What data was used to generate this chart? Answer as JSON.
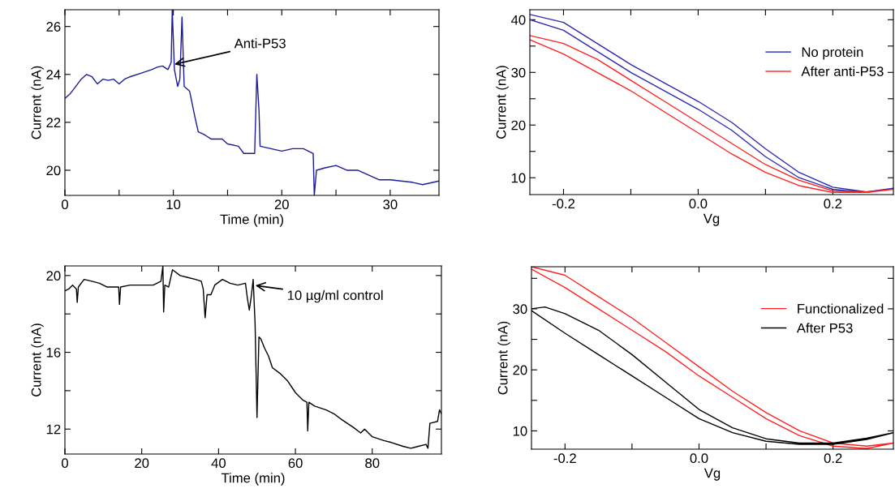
{
  "chart_data": [
    {
      "type": "line",
      "xlabel": "Time (min)",
      "ylabel": "Current (nA)",
      "xlim": [
        0,
        34.5
      ],
      "ylim": [
        18.95,
        26.7
      ],
      "xticks": [
        0,
        {
          "value": 5,
          "label": null
        },
        10,
        {
          "value": 15,
          "label": null
        },
        20,
        {
          "value": 25,
          "label": null
        },
        30
      ],
      "yticks": [
        20,
        22,
        24,
        26
      ],
      "legend": false,
      "grid": false,
      "series": [
        {
          "color": "#1a1a9c",
          "x": [
            0,
            0.5,
            1,
            1.5,
            2,
            2.5,
            3,
            3.5,
            4,
            4.5,
            5,
            5.5,
            6,
            7,
            8,
            8.5,
            9,
            9.5,
            9.8,
            9.9,
            10.1,
            10.4,
            10.6,
            10.8,
            11.0,
            11.5,
            12,
            12.3,
            12.8,
            13.5,
            14.5,
            15,
            16,
            16.5,
            17.5,
            17.7,
            17.9,
            18.0,
            19,
            20,
            21,
            22,
            22.9,
            23.0,
            23.2,
            24,
            25,
            26,
            27,
            28,
            29,
            30,
            31,
            32,
            33,
            34,
            34.5
          ],
          "values": [
            23.0,
            23.2,
            23.5,
            23.8,
            24.0,
            23.9,
            23.6,
            23.8,
            23.75,
            23.8,
            23.6,
            23.8,
            23.9,
            24.05,
            24.2,
            24.3,
            24.35,
            24.2,
            24.5,
            26.7,
            24.2,
            23.5,
            23.8,
            26.4,
            23.5,
            23.3,
            22.2,
            21.6,
            21.5,
            21.3,
            21.3,
            21.1,
            21.0,
            20.7,
            20.7,
            24.0,
            22.5,
            21.0,
            20.9,
            20.8,
            20.9,
            20.9,
            20.7,
            18.95,
            20.0,
            20.1,
            20.2,
            20.0,
            20.0,
            19.8,
            19.6,
            19.6,
            19.55,
            19.5,
            19.4,
            19.5,
            19.55
          ]
        }
      ],
      "annotations": [
        {
          "text": "Anti-P53",
          "x": 9.9,
          "y": 24.4
        }
      ]
    },
    {
      "type": "line",
      "xlabel": "Vg",
      "ylabel": "Current (nA)",
      "xlim": [
        -0.25,
        0.29
      ],
      "ylim": [
        6.8,
        41.9
      ],
      "xticks": [
        {
          "value": -0.2,
          "label": "-0.2"
        },
        {
          "value": -0.1,
          "label": null
        },
        {
          "value": 0,
          "label": "0.0"
        },
        {
          "value": 0.1,
          "label": null
        },
        {
          "value": 0.2,
          "label": "0.2"
        }
      ],
      "yticks": [
        10,
        {
          "value": 15,
          "label": null
        },
        20,
        {
          "value": 25,
          "label": null
        },
        30,
        {
          "value": 35,
          "label": null
        },
        40
      ],
      "legend": "top right",
      "grid": false,
      "series": [
        {
          "name": "No protein",
          "color": "#2a2ab0",
          "x": [
            -0.25,
            -0.2,
            -0.15,
            -0.1,
            -0.05,
            0,
            0.05,
            0.1,
            0.15,
            0.2,
            0.25,
            0.29,
            0.25,
            0.2,
            0.15,
            0.1,
            0.05,
            0,
            -0.05,
            -0.1,
            -0.15,
            -0.2,
            -0.25
          ],
          "values": [
            41,
            39.5,
            35.5,
            31.5,
            28,
            24.5,
            20.5,
            15.5,
            11,
            8.2,
            7.3,
            8.0,
            7.2,
            7.8,
            10,
            14,
            19,
            23,
            26.5,
            30,
            34,
            38,
            40
          ]
        },
        {
          "name": "After anti-P53",
          "color": "#ff2020",
          "x": [
            -0.25,
            -0.2,
            -0.15,
            -0.1,
            -0.05,
            0,
            0.05,
            0.1,
            0.15,
            0.2,
            0.25,
            0.29,
            0.25,
            0.2,
            0.15,
            0.1,
            0.05,
            0,
            -0.05,
            -0.1,
            -0.15,
            -0.2,
            -0.25
          ],
          "values": [
            37,
            35.5,
            32.5,
            28.5,
            24.5,
            20.5,
            16.5,
            12.5,
            9.5,
            7.5,
            7.3,
            7.8,
            7.2,
            7.2,
            8.5,
            11,
            14.5,
            18.5,
            22.5,
            26.5,
            30,
            33.5,
            36.2
          ]
        }
      ]
    },
    {
      "type": "line",
      "xlabel": "Time (min)",
      "ylabel": "Current (nA)",
      "xlim": [
        0,
        98
      ],
      "ylim": [
        10.7,
        20.5
      ],
      "xticks": [
        0,
        20,
        40,
        60,
        80
      ],
      "yticks": [
        12,
        {
          "value": 14,
          "label": null
        },
        16,
        {
          "value": 18,
          "label": null
        },
        20
      ],
      "legend": false,
      "grid": false,
      "series": [
        {
          "color": "#000000",
          "x": [
            0,
            1,
            2,
            3,
            3.2,
            3.5,
            5,
            7,
            9,
            11,
            13,
            14,
            14.2,
            14.5,
            17,
            20,
            23,
            25,
            25.5,
            25.7,
            26,
            27,
            28,
            30,
            32,
            34,
            35.5,
            36,
            36.5,
            37,
            38,
            39,
            41,
            43,
            45,
            47,
            47.5,
            48,
            48.5,
            49,
            49.5,
            50,
            50.5,
            51,
            52,
            53,
            54,
            56,
            58,
            60,
            62,
            63,
            63.2,
            63.5,
            65,
            68,
            70,
            72,
            75,
            77,
            78,
            80,
            83,
            85,
            88,
            90,
            92,
            94,
            94.5,
            95,
            97,
            97.5,
            98
          ],
          "values": [
            19.2,
            19.3,
            19.5,
            19.3,
            18.6,
            19.4,
            19.8,
            19.7,
            19.6,
            19.4,
            19.4,
            19.4,
            18.5,
            19.4,
            19.5,
            19.5,
            19.5,
            19.7,
            20.5,
            18.1,
            19.5,
            19.4,
            20.3,
            20.0,
            19.9,
            19.8,
            19.7,
            19.3,
            17.8,
            19.0,
            19.0,
            19.5,
            19.8,
            19.6,
            19.5,
            19.6,
            18.8,
            18.2,
            18.9,
            19.8,
            17.5,
            12.6,
            16.8,
            16.7,
            16.2,
            15.8,
            15.2,
            14.9,
            14.5,
            13.9,
            13.5,
            13.4,
            11.9,
            13.4,
            13.2,
            13.0,
            12.8,
            12.5,
            12.1,
            11.8,
            12.0,
            11.6,
            11.4,
            11.3,
            11.1,
            11.0,
            11.1,
            11.2,
            11.0,
            12.3,
            12.4,
            13.0,
            12.8
          ]
        }
      ],
      "annotations": [
        {
          "text": "10 µg/ml control",
          "x": 49,
          "y": 19.5
        }
      ]
    },
    {
      "type": "line",
      "xlabel": "Vg",
      "ylabel": "Current (nA)",
      "xlim": [
        -0.25,
        0.29
      ],
      "ylim": [
        7.0,
        36.9
      ],
      "xticks": [
        {
          "value": -0.2,
          "label": "-0.2"
        },
        {
          "value": -0.1,
          "label": null
        },
        {
          "value": 0,
          "label": "0.0"
        },
        {
          "value": 0.1,
          "label": null
        },
        {
          "value": 0.2,
          "label": "0.2"
        }
      ],
      "yticks": [
        10,
        {
          "value": 15,
          "label": null
        },
        20,
        {
          "value": 25,
          "label": null
        },
        30,
        {
          "value": 35,
          "label": null
        }
      ],
      "legend": "top right",
      "grid": false,
      "series": [
        {
          "name": "Functionalized",
          "color": "#ff2020",
          "x": [
            -0.25,
            -0.2,
            -0.15,
            -0.1,
            -0.05,
            0,
            0.05,
            0.1,
            0.15,
            0.2,
            0.25,
            0.29,
            0.25,
            0.2,
            0.15,
            0.1,
            0.05,
            0,
            -0.05,
            -0.1,
            -0.15,
            -0.2,
            -0.25
          ],
          "values": [
            36.9,
            35.5,
            32,
            28.5,
            24.5,
            20.5,
            16.5,
            13,
            10,
            8,
            7.5,
            8,
            7.1,
            7.5,
            9.2,
            12,
            15.5,
            19,
            23,
            26.5,
            30,
            33.5,
            36.5
          ]
        },
        {
          "name": "After P53",
          "color": "#000000",
          "x": [
            -0.25,
            -0.23,
            -0.2,
            -0.15,
            -0.1,
            -0.05,
            0,
            0.05,
            0.1,
            0.15,
            0.2,
            0.25,
            0.29,
            0.25,
            0.2,
            0.15,
            0.1,
            0.05,
            0,
            -0.05,
            -0.1,
            -0.15,
            -0.2,
            -0.25
          ],
          "values": [
            30,
            30.3,
            29.2,
            26.5,
            22.5,
            18,
            13.5,
            10.5,
            8.7,
            8,
            8,
            8.8,
            9.7,
            8.6,
            7.8,
            7.8,
            8.3,
            9.7,
            12,
            15.5,
            19,
            22.5,
            26,
            29.7
          ]
        }
      ]
    }
  ]
}
